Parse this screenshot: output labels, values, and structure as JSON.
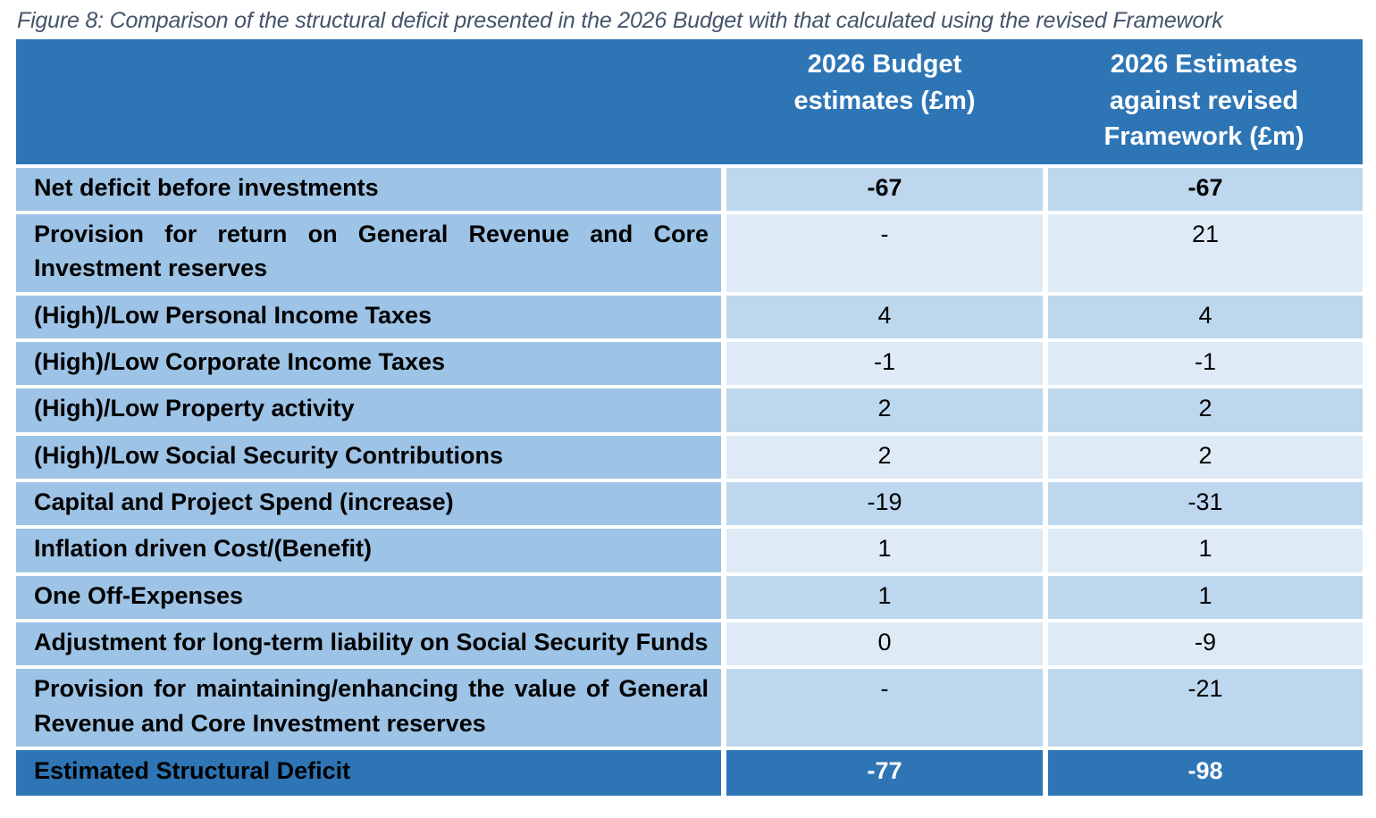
{
  "caption": "Figure 8: Comparison of the structural deficit presented in the 2026 Budget with that calculated using the revised Framework",
  "table": {
    "header": {
      "row_label": "",
      "col_budget": "2026 Budget estimates (£m)",
      "col_revised": "2026 Estimates against revised Framework (£m)"
    },
    "rows": [
      {
        "label": "Net deficit before investments",
        "budget": "-67",
        "revised": "-67",
        "emphasis": true
      },
      {
        "label": "Provision for return on General Revenue and Core Investment reserves",
        "budget": "-",
        "revised": "21"
      },
      {
        "label": "(High)/Low Personal Income Taxes",
        "budget": "4",
        "revised": "4"
      },
      {
        "label": "(High)/Low Corporate Income Taxes",
        "budget": "-1",
        "revised": "-1"
      },
      {
        "label": "(High)/Low Property activity",
        "budget": "2",
        "revised": "2"
      },
      {
        "label": "(High)/Low Social Security Contributions",
        "budget": "2",
        "revised": "2"
      },
      {
        "label": "Capital and Project Spend (increase)",
        "budget": "-19",
        "revised": "-31"
      },
      {
        "label": "Inflation driven Cost/(Benefit)",
        "budget": "1",
        "revised": "1"
      },
      {
        "label": "One Off-Expenses",
        "budget": "1",
        "revised": "1"
      },
      {
        "label": "Adjustment for long-term liability on Social Security Funds",
        "budget": "0",
        "revised": "-9"
      },
      {
        "label": "Provision for maintaining/enhancing the value of General Revenue and Core Investment reserves",
        "budget": "-",
        "revised": "-21"
      }
    ],
    "footer": {
      "label": "Estimated Structural Deficit",
      "budget": "-77",
      "revised": "-98"
    }
  },
  "colors": {
    "header_bg": "#2E75B6",
    "footer_bg": "#2E75B6",
    "label_column_bg": "#9DC3E6",
    "value_band_medium": "#BDD7EE",
    "value_band_light": "#DEEBF7",
    "caption_text": "#44546A",
    "header_text": "#FFFFFF",
    "body_text": "#000000"
  },
  "chart_data": {
    "type": "table",
    "title": "Figure 8: Comparison of the structural deficit presented in the 2026 Budget with that calculated using the revised Framework",
    "columns": [
      "",
      "2026 Budget estimates (£m)",
      "2026 Estimates against revised Framework (£m)"
    ],
    "rows": [
      [
        "Net deficit before investments",
        -67,
        -67
      ],
      [
        "Provision for return on General Revenue and Core Investment reserves",
        null,
        21
      ],
      [
        "(High)/Low Personal Income Taxes",
        4,
        4
      ],
      [
        "(High)/Low Corporate Income Taxes",
        -1,
        -1
      ],
      [
        "(High)/Low Property activity",
        2,
        2
      ],
      [
        "(High)/Low Social Security Contributions",
        2,
        2
      ],
      [
        "Capital and Project Spend (increase)",
        -19,
        -31
      ],
      [
        "Inflation driven Cost/(Benefit)",
        1,
        1
      ],
      [
        "One Off-Expenses",
        1,
        1
      ],
      [
        "Adjustment for long-term liability on Social Security Funds",
        0,
        -9
      ],
      [
        "Provision for maintaining/enhancing the value of General Revenue and Core Investment reserves",
        null,
        -21
      ],
      [
        "Estimated Structural Deficit",
        -77,
        -98
      ]
    ],
    "notes": "Dash (-) in source table denotes no value; totals row is Estimated Structural Deficit"
  }
}
